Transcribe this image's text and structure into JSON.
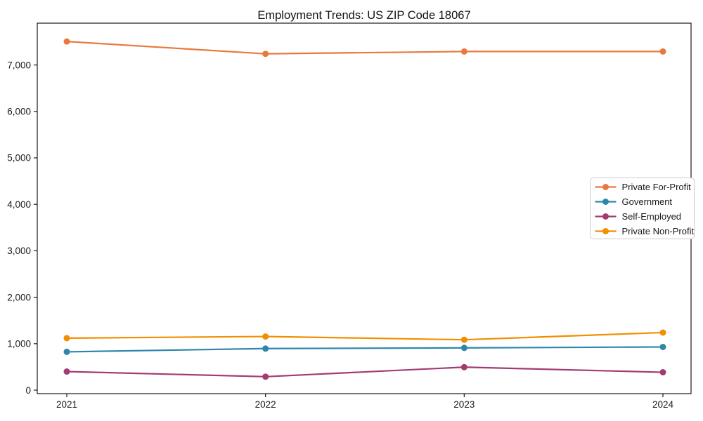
{
  "chart_data": {
    "type": "line",
    "title": "Employment Trends: US ZIP Code 18067",
    "categories": [
      "2021",
      "2022",
      "2023",
      "2024"
    ],
    "series": [
      {
        "name": "Private For-Profit",
        "color": "#E8793E",
        "values": [
          7505,
          7240,
          7290,
          7290
        ]
      },
      {
        "name": "Government",
        "color": "#2E86AB",
        "values": [
          825,
          895,
          910,
          930
        ]
      },
      {
        "name": "Self-Employed",
        "color": "#A23B72",
        "values": [
          400,
          290,
          495,
          385
        ]
      },
      {
        "name": "Private Non-Profit",
        "color": "#F18F01",
        "values": [
          1120,
          1155,
          1085,
          1240
        ]
      }
    ],
    "xlabel": "",
    "ylabel": "",
    "ylim": [
      -75,
      7900
    ],
    "yticks": [
      0,
      1000,
      2000,
      3000,
      4000,
      5000,
      6000,
      7000
    ],
    "ytick_labels": [
      "0",
      "1,000",
      "2,000",
      "3,000",
      "4,000",
      "5,000",
      "6,000",
      "7,000"
    ],
    "grid": false,
    "legend_position": "center-right",
    "marker": "circle",
    "axis_color": "#1a1a1a",
    "tick_label_color": "#1a1a1a",
    "legend_border_color": "#cccccc",
    "background_color": "#ffffff"
  }
}
